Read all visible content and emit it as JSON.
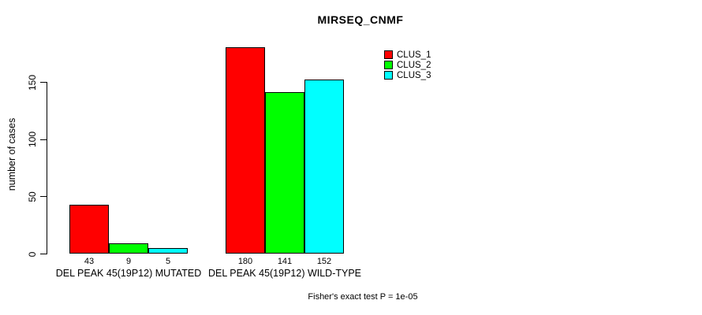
{
  "chart_data": {
    "type": "bar",
    "title": "MIRSEQ_CNMF",
    "ylabel": "number of cases",
    "xlabel": "",
    "categories": [
      "DEL PEAK 45(19P12) MUTATED",
      "DEL PEAK 45(19P12) WILD-TYPE"
    ],
    "series": [
      {
        "name": "CLUS_1",
        "color": "#ff0000",
        "values": [
          43,
          180
        ]
      },
      {
        "name": "CLUS_2",
        "color": "#00ff00",
        "values": [
          9,
          141
        ]
      },
      {
        "name": "CLUS_3",
        "color": "#00ffff",
        "values": [
          5,
          152
        ]
      }
    ],
    "value_labels_shown": true,
    "yticks": [
      0,
      50,
      100,
      150
    ],
    "ylim": [
      0,
      185
    ],
    "grid": false,
    "legend": {
      "position": "top-right",
      "entries": [
        "CLUS_1",
        "CLUS_2",
        "CLUS_3"
      ]
    },
    "annotation": "Fisher's exact test P = 1e-05",
    "bar_border_color": "#000000",
    "axis_color": "#000000",
    "background": "#ffffff"
  }
}
